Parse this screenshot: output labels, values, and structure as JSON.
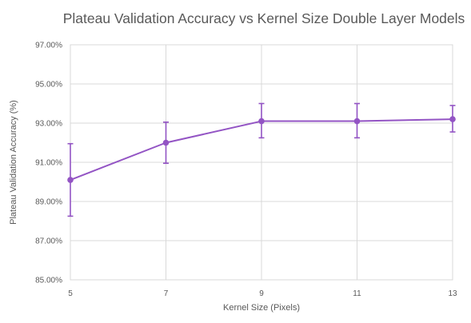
{
  "chart_data": {
    "type": "line",
    "title": "Plateau Validation Accuracy vs Kernel Size Double Layer Models",
    "xlabel": "Kernel Size (Pixels)",
    "ylabel": "Plateau Validation Accuracy (%)",
    "x": [
      5,
      7,
      9,
      11,
      13
    ],
    "x_ticks": [
      "5",
      "7",
      "9",
      "11",
      "13"
    ],
    "xlim": [
      5,
      13
    ],
    "ylim": [
      85,
      97
    ],
    "y_ticks": [
      "85.00%",
      "87.00%",
      "89.00%",
      "91.00%",
      "93.00%",
      "95.00%",
      "97.00%"
    ],
    "y_tick_values": [
      85,
      87,
      89,
      91,
      93,
      95,
      97
    ],
    "grid": true,
    "series": [
      {
        "values": [
          90.1,
          92.0,
          93.1,
          93.1,
          93.2
        ],
        "error_low": [
          88.25,
          90.95,
          92.25,
          92.25,
          92.55
        ],
        "error_high": [
          91.95,
          93.05,
          94.0,
          94.0,
          93.9
        ],
        "color": "#9354c4"
      }
    ]
  }
}
